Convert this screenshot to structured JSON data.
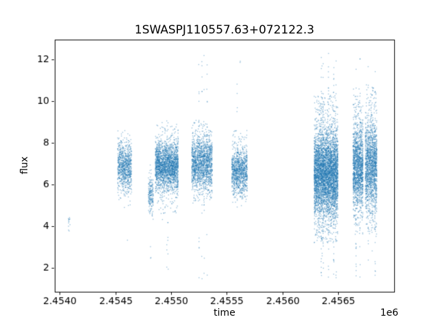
{
  "chart_data": {
    "type": "scatter",
    "title": "1SWASPJ110557.63+072122.3",
    "xlabel": "time",
    "ylabel": "flux",
    "x_offset_label": "1e6",
    "xlim": [
      2453955,
      2457005
    ],
    "ylim": [
      0.85,
      12.95
    ],
    "xticks": [
      {
        "value": 2454000,
        "label": "2.4540"
      },
      {
        "value": 2454500,
        "label": "2.4545"
      },
      {
        "value": 2455000,
        "label": "2.4550"
      },
      {
        "value": 2455500,
        "label": "2.4555"
      },
      {
        "value": 2456000,
        "label": "2.4560"
      },
      {
        "value": 2456500,
        "label": "2.4565"
      }
    ],
    "yticks": [
      {
        "value": 2,
        "label": "2"
      },
      {
        "value": 4,
        "label": "4"
      },
      {
        "value": 6,
        "label": "6"
      },
      {
        "value": 8,
        "label": "8"
      },
      {
        "value": 10,
        "label": "10"
      },
      {
        "value": 12,
        "label": "12"
      }
    ],
    "grid": false,
    "legend": false,
    "point_color": "#1f77b4",
    "point_alpha": 0.5,
    "background": "#ffffff",
    "clusters": [
      {
        "x_start": 2454075,
        "x_end": 2454095,
        "n": 13,
        "nights": 3,
        "night_jitter": 1.5,
        "flux_mean": 4.2,
        "flux_sd": 0.3
      },
      {
        "x_start": 2454520,
        "x_end": 2454645,
        "n": 900,
        "nights": 24,
        "night_jitter": 1.2,
        "flux_mean": 6.85,
        "flux_sd": 0.55,
        "tail": {
          "frac": 0.06,
          "min": 4.9,
          "max": 8.5
        },
        "extreme": {
          "frac": 0.005,
          "min": 2.6,
          "max": 4.6,
          "at": [
            0.45,
            0.7
          ]
        }
      },
      {
        "x_start": 2454795,
        "x_end": 2454840,
        "n": 190,
        "nights": 7,
        "night_jitter": 1.2,
        "flux_mean": 5.55,
        "flux_sd": 0.45,
        "tail": {
          "frac": 0.08,
          "min": 4.4,
          "max": 6.7
        },
        "extreme": {
          "frac": 0.02,
          "min": 2.3,
          "max": 4.5,
          "at": [
            0.5
          ]
        }
      },
      {
        "x_start": 2454858,
        "x_end": 2455065,
        "n": 2300,
        "nights": 34,
        "night_jitter": 1.2,
        "flux_mean": 6.9,
        "flux_sd": 0.55,
        "tail": {
          "frac": 0.09,
          "min": 4.6,
          "max": 9.0
        },
        "extreme": {
          "frac": 0.008,
          "min": 1.9,
          "max": 9.5,
          "at": [
            0.3,
            0.5,
            0.55
          ]
        }
      },
      {
        "x_start": 2455185,
        "x_end": 2455370,
        "n": 1700,
        "nights": 30,
        "night_jitter": 1.2,
        "flux_mean": 7.0,
        "flux_sd": 0.6,
        "tail": {
          "frac": 0.1,
          "min": 5.2,
          "max": 9.1
        },
        "extreme": {
          "frac": 0.03,
          "min": 1.4,
          "max": 12.4,
          "at": [
            0.35,
            0.5,
            0.6,
            0.75
          ]
        }
      },
      {
        "x_start": 2455545,
        "x_end": 2455685,
        "n": 1100,
        "nights": 22,
        "night_jitter": 1.2,
        "flux_mean": 6.6,
        "flux_sd": 0.5,
        "tail": {
          "frac": 0.08,
          "min": 5.3,
          "max": 8.6
        },
        "extreme": {
          "frac": 0.02,
          "min": 4.3,
          "max": 12.4,
          "at": [
            0.35,
            0.55
          ]
        }
      },
      {
        "x_start": 2456285,
        "x_end": 2456500,
        "n": 4800,
        "nights": 36,
        "night_jitter": 1.2,
        "flux_mean": 6.5,
        "flux_sd": 1.0,
        "tail": {
          "frac": 0.12,
          "min": 3.2,
          "max": 10.3
        },
        "extreme": {
          "frac": 0.035,
          "min": 1.5,
          "max": 12.4,
          "at": [
            0.3,
            0.33,
            0.38,
            0.6,
            0.82,
            0.92
          ]
        }
      },
      {
        "x_start": 2456635,
        "x_end": 2456725,
        "n": 1600,
        "nights": 16,
        "night_jitter": 1.2,
        "flux_mean": 6.8,
        "flux_sd": 1.0,
        "tail": {
          "frac": 0.1,
          "min": 3.6,
          "max": 10.6
        },
        "extreme": {
          "frac": 0.03,
          "min": 1.5,
          "max": 12.3,
          "at": [
            0.3,
            0.7
          ]
        }
      },
      {
        "x_start": 2456745,
        "x_end": 2456850,
        "n": 1700,
        "nights": 18,
        "night_jitter": 1.2,
        "flux_mean": 6.9,
        "flux_sd": 1.05,
        "tail": {
          "frac": 0.1,
          "min": 3.6,
          "max": 10.8
        },
        "extreme": {
          "frac": 0.03,
          "min": 1.6,
          "max": 12.3,
          "at": [
            0.25,
            0.6,
            0.85
          ]
        }
      }
    ]
  }
}
